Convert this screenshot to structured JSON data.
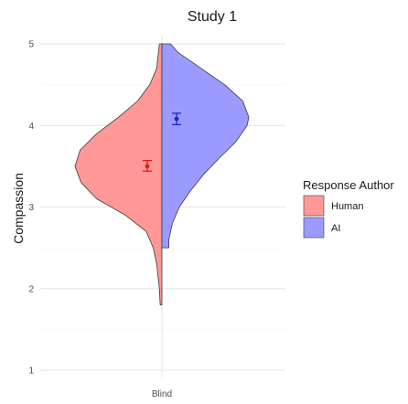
{
  "chart_data": {
    "type": "split-violin",
    "title": "Study 1",
    "xlabel": "",
    "ylabel": "Compassion",
    "categories": [
      "Blind"
    ],
    "ylim": [
      1,
      5
    ],
    "yticks": [
      1,
      2,
      3,
      4,
      5
    ],
    "grid": true,
    "legend": {
      "title": "Response Author",
      "position": "right",
      "items": [
        {
          "label": "Human",
          "color": "#ff9896"
        },
        {
          "label": "AI",
          "color": "#9b9bff"
        }
      ]
    },
    "series": [
      {
        "name": "Human",
        "side": "left",
        "color": "#ff9896",
        "range": [
          1.8,
          5.0
        ],
        "mean": 3.5,
        "ci": [
          3.44,
          3.57
        ],
        "point_color": "#dd1c1c",
        "density": [
          [
            1.8,
            0.02
          ],
          [
            2.0,
            0.03
          ],
          [
            2.3,
            0.06
          ],
          [
            2.5,
            0.1
          ],
          [
            2.7,
            0.18
          ],
          [
            2.9,
            0.42
          ],
          [
            3.1,
            0.75
          ],
          [
            3.3,
            0.93
          ],
          [
            3.5,
            1.0
          ],
          [
            3.7,
            0.94
          ],
          [
            3.9,
            0.75
          ],
          [
            4.1,
            0.5
          ],
          [
            4.3,
            0.28
          ],
          [
            4.5,
            0.14
          ],
          [
            4.7,
            0.06
          ],
          [
            5.0,
            0.03
          ]
        ]
      },
      {
        "name": "AI",
        "side": "right",
        "color": "#9b9bff",
        "range": [
          2.5,
          5.0
        ],
        "mean": 4.08,
        "ci": [
          4.01,
          4.15
        ],
        "point_color": "#1f1fcf",
        "density": [
          [
            2.5,
            0.08
          ],
          [
            2.6,
            0.08
          ],
          [
            2.8,
            0.12
          ],
          [
            3.0,
            0.2
          ],
          [
            3.2,
            0.33
          ],
          [
            3.4,
            0.48
          ],
          [
            3.6,
            0.66
          ],
          [
            3.8,
            0.85
          ],
          [
            4.0,
            0.98
          ],
          [
            4.1,
            1.0
          ],
          [
            4.3,
            0.93
          ],
          [
            4.5,
            0.72
          ],
          [
            4.7,
            0.45
          ],
          [
            4.9,
            0.18
          ],
          [
            5.0,
            0.1
          ]
        ]
      }
    ]
  }
}
